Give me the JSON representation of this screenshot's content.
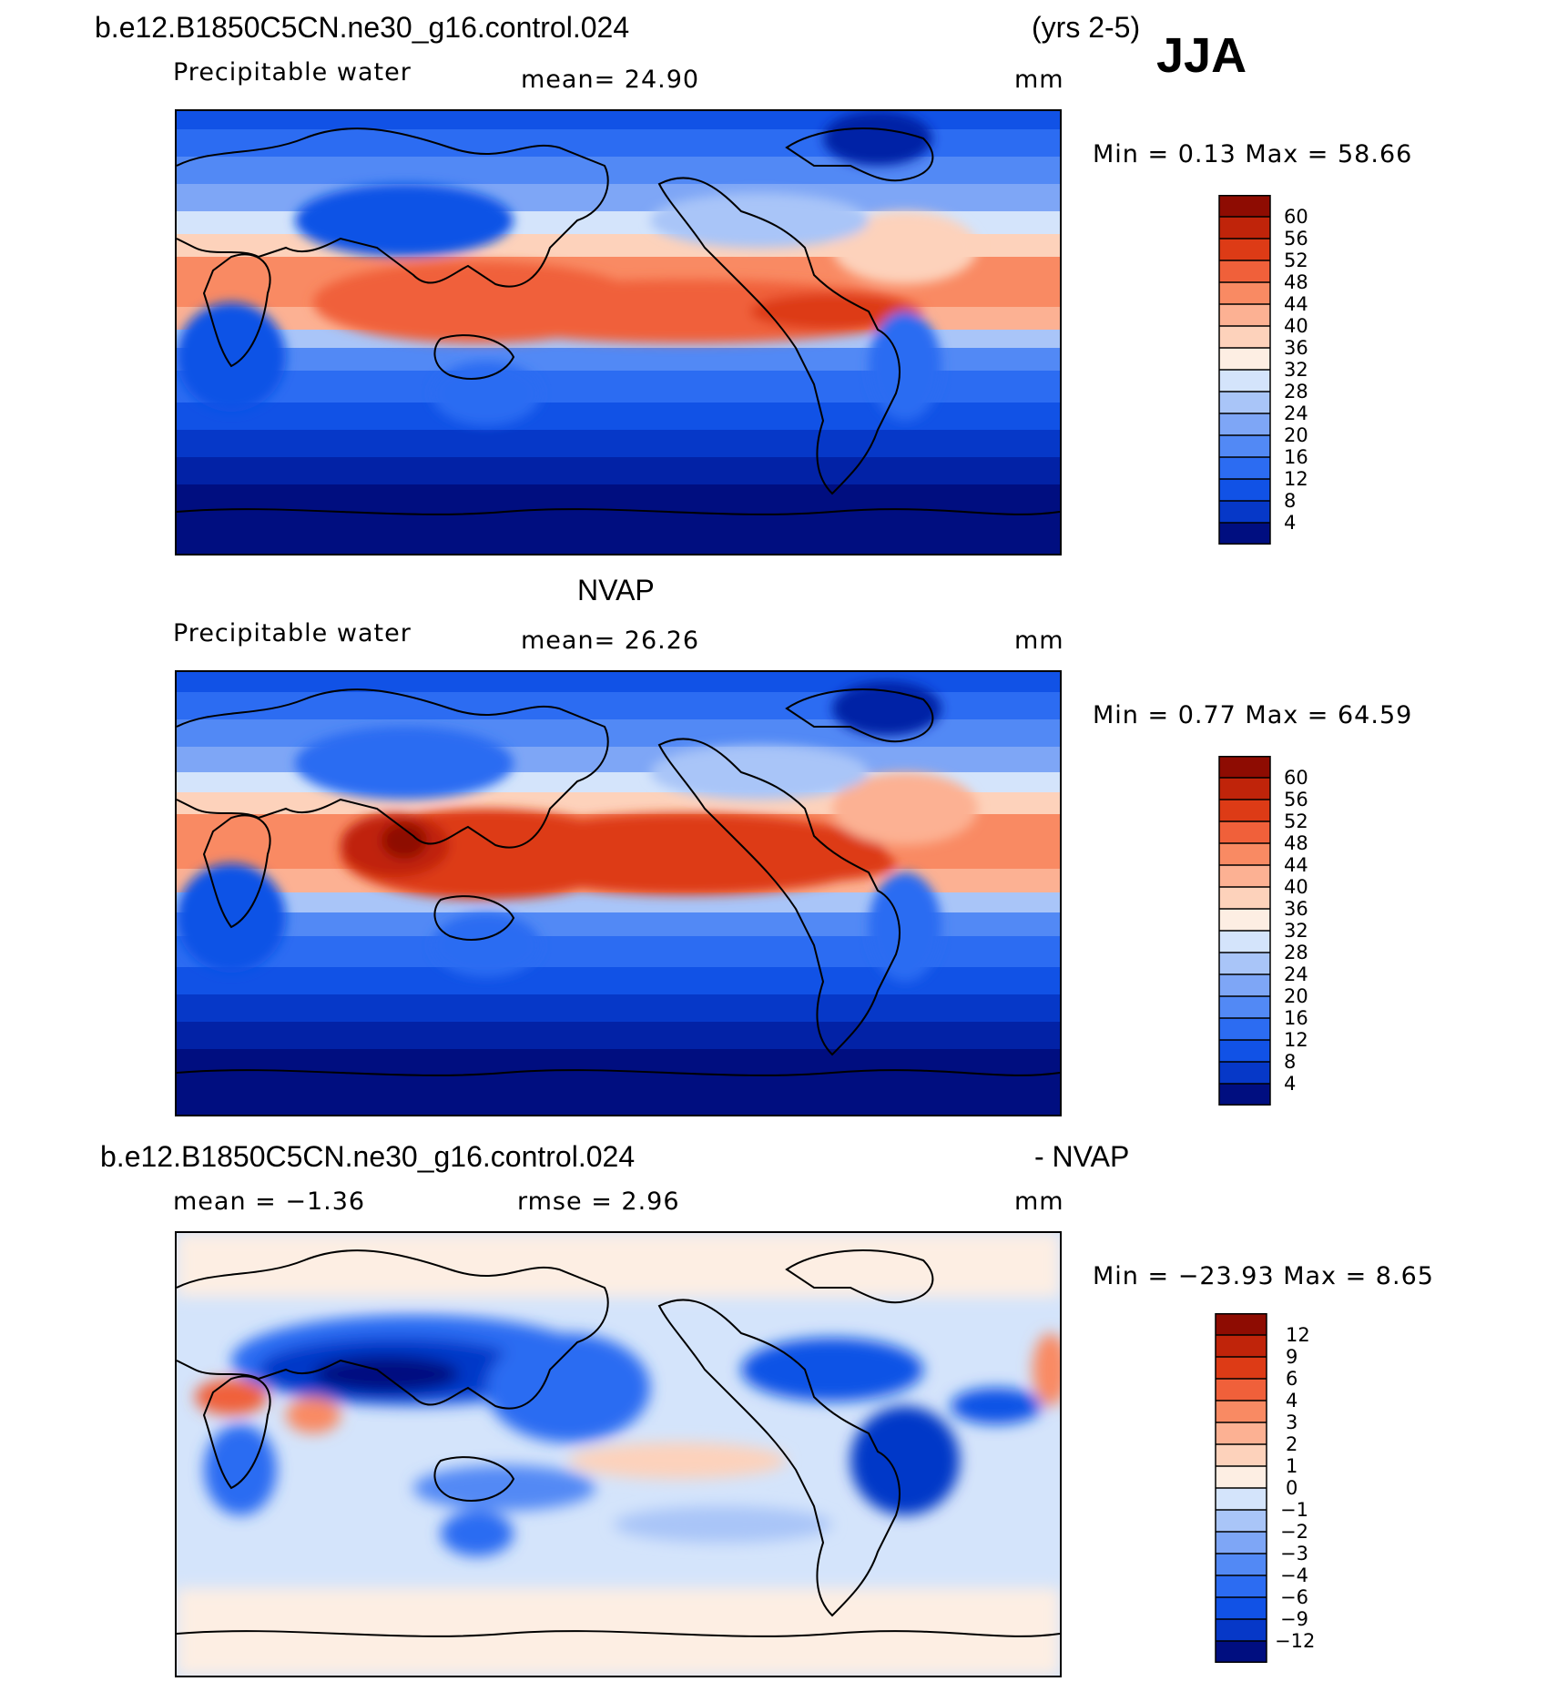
{
  "header": {
    "case_name": "b.e12.B1850C5CN.ne30_g16.control.024",
    "years": "(yrs 2-5)",
    "season": "JJA"
  },
  "panels": [
    {
      "id": "model",
      "title": "",
      "variable": "Precipitable water",
      "stat_text": "mean=   24.90",
      "units": "mm",
      "minmax": "Min =    0.13 Max =   58.66",
      "colorbar_labels": [
        "60",
        "56",
        "52",
        "48",
        "44",
        "40",
        "36",
        "32",
        "28",
        "24",
        "20",
        "16",
        "12",
        "8",
        "4"
      ]
    },
    {
      "id": "obs",
      "title": "NVAP",
      "variable": "Precipitable water",
      "stat_text": "mean=   26.26",
      "units": "mm",
      "minmax": "Min =    0.77 Max =   64.59",
      "colorbar_labels": [
        "60",
        "56",
        "52",
        "48",
        "44",
        "40",
        "36",
        "32",
        "28",
        "24",
        "20",
        "16",
        "12",
        "8",
        "4"
      ]
    },
    {
      "id": "diff",
      "title_left": "b.e12.B1850C5CN.ne30_g16.control.024",
      "title_right": "- NVAP",
      "variable": "mean =   −1.36",
      "stat_text": "rmse =    2.96",
      "units": "mm",
      "minmax": "Min = −23.93 Max =    8.65",
      "colorbar_labels": [
        "12",
        "9",
        "6",
        "4",
        "3",
        "2",
        "1",
        "0",
        "−1",
        "−2",
        "−3",
        "−4",
        "−6",
        "−9",
        "−12"
      ]
    }
  ],
  "colors": {
    "abs_palette": [
      "#000e80",
      "#0222a6",
      "#0638c8",
      "#1152e6",
      "#2c6cf2",
      "#5289f5",
      "#7ea6f6",
      "#a9c5f8",
      "#d4e4fb",
      "#fdeee3",
      "#fdd2bb",
      "#fcb193",
      "#f98a63",
      "#f0603a",
      "#dd3b16",
      "#c0240a",
      "#8e0c02"
    ],
    "diff_palette": [
      "#000e80",
      "#0222a6",
      "#0638c8",
      "#1152e6",
      "#2c6cf2",
      "#5289f5",
      "#7ea6f6",
      "#a9c5f8",
      "#d4e4fb",
      "#fdeee3",
      "#fdd2bb",
      "#fcb193",
      "#f98a63",
      "#f0603a",
      "#dd3b16",
      "#c0240a",
      "#8e0c02"
    ]
  }
}
